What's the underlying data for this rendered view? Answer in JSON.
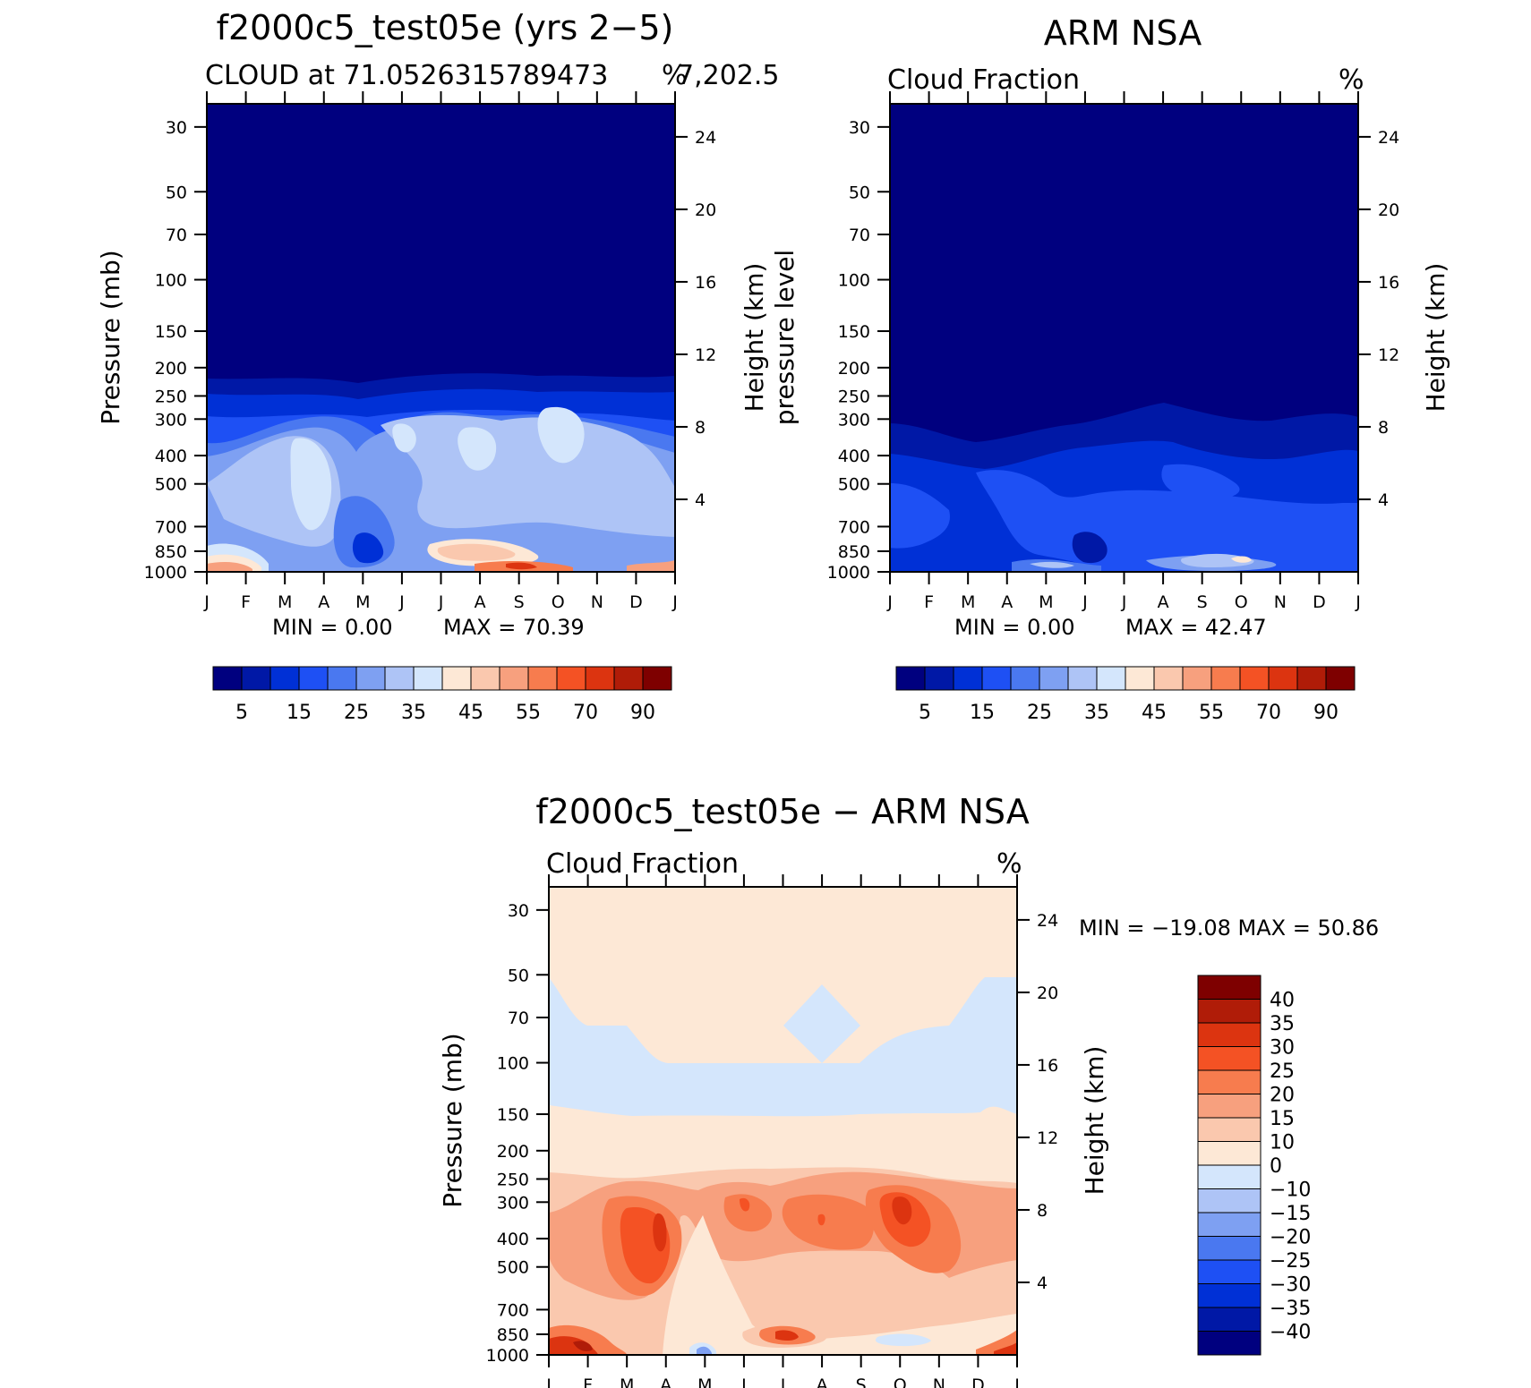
{
  "figure": {
    "colorbar_abs": {
      "colors": [
        "#00007f",
        "#0018a6",
        "#0030d6",
        "#1e50f4",
        "#4a78f0",
        "#7ea0f2",
        "#aec4f6",
        "#d4e6fc",
        "#fde8d6",
        "#fac8ae",
        "#f7a07e",
        "#f77c4e",
        "#f45224",
        "#dc3410",
        "#b01c08",
        "#7e0000"
      ],
      "labels": [
        "5",
        "15",
        "25",
        "35",
        "45",
        "55",
        "70",
        "90"
      ]
    },
    "colorbar_diff": {
      "colors": [
        "#00007f",
        "#0018a6",
        "#0030d6",
        "#1e50f4",
        "#4a78f0",
        "#7ea0f2",
        "#aec4f6",
        "#d4e6fc",
        "#fde8d6",
        "#fac8ae",
        "#f7a07e",
        "#f77c4e",
        "#f45224",
        "#dc3410",
        "#b01c08",
        "#7e0000"
      ],
      "labels": [
        "40",
        "35",
        "30",
        "25",
        "20",
        "15",
        "10",
        "0",
        "−10",
        "−15",
        "−20",
        "−25",
        "−30",
        "−35",
        "−40"
      ]
    },
    "month_ticks": [
      "J",
      "F",
      "M",
      "A",
      "M",
      "J",
      "J",
      "A",
      "S",
      "O",
      "N",
      "D",
      "J"
    ],
    "pressure_ticks": [
      30,
      50,
      70,
      100,
      150,
      200,
      250,
      300,
      400,
      500,
      700,
      850,
      1000
    ],
    "height_ticks": [
      4,
      8,
      12,
      16,
      20,
      24
    ]
  },
  "chart_data": [
    {
      "type": "heatmap",
      "title": "f2000c5_test05e (yrs 2−5)",
      "subtitle_left": "CLOUD at 71.0526315789473",
      "subtitle_right": "7,202.5",
      "units": "%",
      "ylabel_left": "Pressure (mb)",
      "ylabel_right": "Height (km)",
      "stat_min": "MIN =     0.00",
      "stat_max": "MAX =    70.39",
      "x": [
        "J",
        "F",
        "M",
        "A",
        "M",
        "J",
        "J",
        "A",
        "S",
        "O",
        "N",
        "D",
        "J"
      ],
      "ylim_mb": [
        1000,
        25
      ],
      "levels": [
        0,
        5,
        10,
        15,
        20,
        25,
        30,
        35,
        40,
        45,
        50,
        55,
        60,
        70,
        80,
        90
      ],
      "min": 0.0,
      "max": 70.39
    },
    {
      "type": "heatmap",
      "title": "ARM NSA",
      "subtitle_left": "Cloud Fraction",
      "units": "%",
      "ylabel_left": "pressure level",
      "ylabel_right": "Height (km)",
      "stat_min": "MIN =     0.00",
      "stat_max": "MAX =    42.47",
      "x": [
        "J",
        "F",
        "M",
        "A",
        "M",
        "J",
        "J",
        "A",
        "S",
        "O",
        "N",
        "D",
        "J"
      ],
      "ylim_mb": [
        1000,
        25
      ],
      "levels": [
        0,
        5,
        10,
        15,
        20,
        25,
        30,
        35,
        40,
        45,
        50,
        55,
        60,
        70,
        80,
        90
      ],
      "min": 0.0,
      "max": 42.47
    },
    {
      "type": "heatmap",
      "title": "f2000c5_test05e − ARM NSA",
      "subtitle_left": "Cloud Fraction",
      "units": "%",
      "ylabel_left": "Pressure (mb)",
      "ylabel_right": "Height (km)",
      "stat_text": "MIN = −19.08 MAX =    50.86",
      "x": [
        "J",
        "F",
        "M",
        "A",
        "M",
        "J",
        "J",
        "A",
        "S",
        "O",
        "N",
        "D",
        "J"
      ],
      "ylim_mb": [
        1000,
        25
      ],
      "levels": [
        -40,
        -35,
        -30,
        -25,
        -20,
        -15,
        -10,
        0,
        10,
        15,
        20,
        25,
        30,
        35,
        40
      ],
      "min": -19.08,
      "max": 50.86
    }
  ]
}
